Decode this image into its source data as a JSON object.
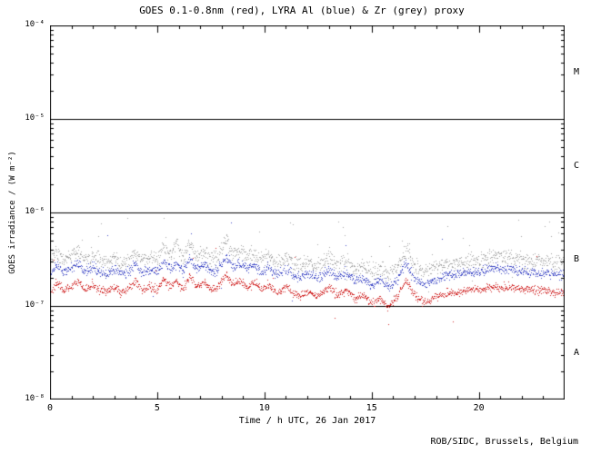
{
  "credit": "ROB/SIDC, Brussels, Belgium",
  "chart_data": {
    "type": "scatter",
    "title": "GOES 0.1-0.8nm (red), LYRA Al (blue) & Zr (grey) proxy",
    "xlabel": "Time / h UTC, 26 Jan 2017",
    "ylabel": "GOES irradiance / (W m⁻²)",
    "x_range": [
      0,
      24
    ],
    "y_range_exp": [
      -8,
      -4
    ],
    "grid": "off",
    "legend": "in-title",
    "x_major_ticks": [
      {
        "value": 0,
        "label": "0"
      },
      {
        "value": 5,
        "label": "5"
      },
      {
        "value": 10,
        "label": "10"
      },
      {
        "value": 15,
        "label": "15"
      },
      {
        "value": 20,
        "label": "20"
      }
    ],
    "x_minor_step": 1,
    "y_ticks": [
      {
        "exp": -4,
        "label": "10⁻⁴"
      },
      {
        "exp": -5,
        "label": "10⁻⁵"
      },
      {
        "exp": -6,
        "label": "10⁻⁶"
      },
      {
        "exp": -7,
        "label": "10⁻⁷"
      },
      {
        "exp": -8,
        "label": "10⁻⁸"
      }
    ],
    "flare_class_boundary_lines_exp": [
      -5,
      -6,
      -7
    ],
    "flare_class_labels": [
      {
        "label": "M",
        "center_exp": -4.5
      },
      {
        "label": "C",
        "center_exp": -5.5
      },
      {
        "label": "B",
        "center_exp": -6.5
      },
      {
        "label": "A",
        "center_exp": -7.5
      }
    ],
    "value_unit": "1e-7 W m^-2",
    "anchors_x_hours": [
      0,
      0.3,
      0.6,
      1.0,
      1.3,
      1.6,
      2.0,
      2.3,
      2.6,
      3.0,
      3.3,
      3.6,
      4.0,
      4.3,
      4.7,
      5.0,
      5.3,
      5.6,
      5.9,
      6.2,
      6.5,
      6.8,
      7.2,
      7.5,
      7.8,
      8.2,
      8.5,
      8.8,
      9.2,
      9.5,
      9.8,
      10.2,
      10.5,
      11.0,
      11.5,
      12.0,
      12.5,
      13.0,
      13.4,
      13.8,
      14.2,
      14.6,
      15.0,
      15.4,
      15.8,
      16.2,
      16.6,
      17.0,
      17.4,
      17.8,
      18.2,
      18.6,
      19.0,
      19.5,
      20.0,
      20.5,
      21.0,
      21.5,
      22.0,
      22.5,
      23.0,
      23.5,
      24.0
    ],
    "series": [
      {
        "name": "LYRA Zr proxy",
        "color": "#9c9c9c",
        "values_e7": [
          3.0,
          3.8,
          3.1,
          3.4,
          4.0,
          3.1,
          3.6,
          3.1,
          2.9,
          3.4,
          2.9,
          3.1,
          3.8,
          3.1,
          3.4,
          3.2,
          4.6,
          3.4,
          5.0,
          3.2,
          4.8,
          3.4,
          3.8,
          3.1,
          3.4,
          5.2,
          3.6,
          4.2,
          3.4,
          3.8,
          3.1,
          3.6,
          2.9,
          3.4,
          2.7,
          2.9,
          2.7,
          3.4,
          2.7,
          3.1,
          2.5,
          2.7,
          2.3,
          2.5,
          2.1,
          2.7,
          4.2,
          2.7,
          2.3,
          2.5,
          2.7,
          2.9,
          2.9,
          3.1,
          3.1,
          3.4,
          3.4,
          3.4,
          3.1,
          3.1,
          3.1,
          2.9,
          2.9
        ],
        "noise_sigma": 0.1,
        "outlier_prob": 0.02
      },
      {
        "name": "LYRA Al proxy",
        "color": "#2a35c0",
        "values_e7": [
          2.2,
          2.8,
          2.3,
          2.5,
          2.9,
          2.3,
          2.6,
          2.3,
          2.2,
          2.5,
          2.2,
          2.3,
          2.8,
          2.3,
          2.5,
          2.3,
          3.1,
          2.5,
          2.8,
          2.3,
          3.3,
          2.5,
          2.8,
          2.3,
          2.5,
          3.4,
          2.6,
          2.9,
          2.5,
          2.8,
          2.3,
          2.6,
          2.2,
          2.5,
          2.0,
          2.2,
          2.0,
          2.5,
          2.0,
          2.3,
          1.9,
          2.0,
          1.7,
          1.9,
          1.6,
          2.0,
          2.9,
          2.0,
          1.7,
          1.9,
          2.0,
          2.2,
          2.2,
          2.3,
          2.3,
          2.5,
          2.5,
          2.5,
          2.3,
          2.3,
          2.3,
          2.2,
          2.2
        ],
        "noise_sigma": 0.06,
        "outlier_prob": 0.005
      },
      {
        "name": "GOES 0.1-0.8nm",
        "color": "#cc1111",
        "values_e7": [
          1.4,
          1.8,
          1.5,
          1.6,
          1.9,
          1.5,
          1.7,
          1.5,
          1.4,
          1.6,
          1.4,
          1.5,
          1.8,
          1.5,
          1.6,
          1.5,
          2.0,
          1.6,
          1.8,
          1.5,
          2.1,
          1.6,
          1.8,
          1.5,
          1.6,
          2.2,
          1.7,
          1.9,
          1.6,
          1.8,
          1.5,
          1.7,
          1.4,
          1.6,
          1.3,
          1.4,
          1.3,
          1.6,
          1.3,
          1.5,
          1.2,
          1.3,
          1.1,
          1.2,
          1.0,
          1.3,
          1.9,
          1.3,
          1.1,
          1.2,
          1.3,
          1.4,
          1.4,
          1.5,
          1.5,
          1.6,
          1.6,
          1.6,
          1.5,
          1.5,
          1.5,
          1.4,
          1.4
        ],
        "noise_sigma": 0.05,
        "outlier_prob": 0.005
      }
    ],
    "points_per_series": 1440,
    "seed": 20170126
  }
}
